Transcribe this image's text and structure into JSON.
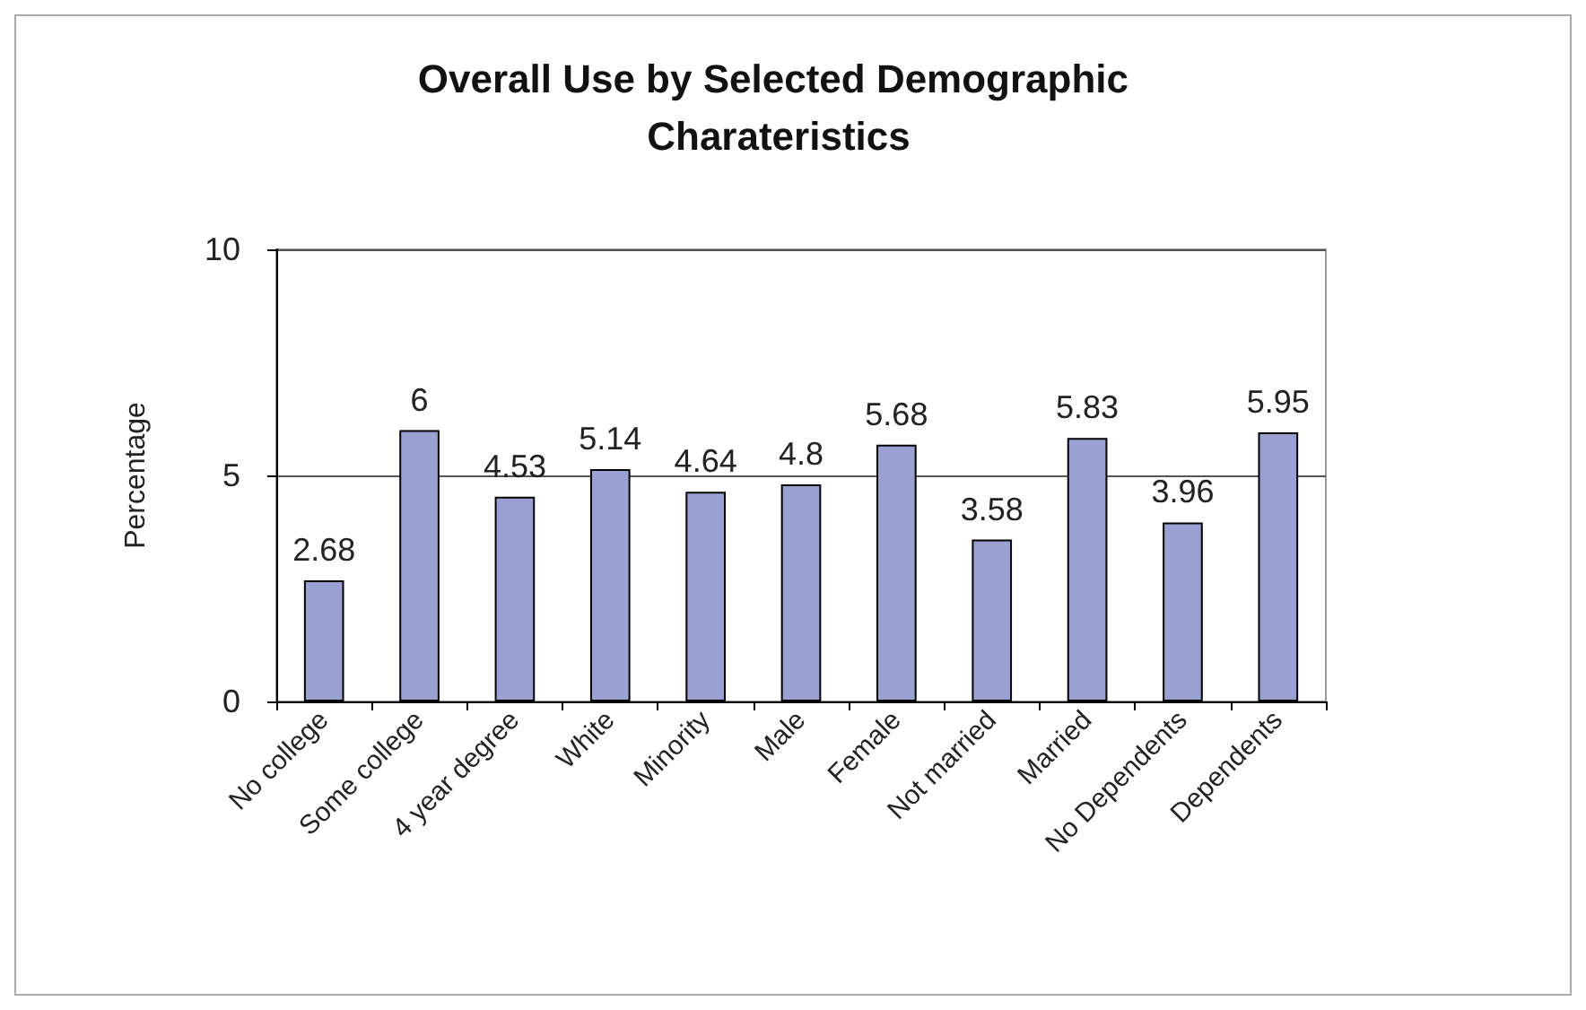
{
  "chart_data": {
    "type": "bar",
    "title": "Overall Use by Selected Demographic Charateristics",
    "ylabel": "Percentage",
    "categories": [
      "No college",
      "Some college",
      "4 year degree",
      "White",
      "Minority",
      "Male",
      "Female",
      "Not married",
      "Married",
      "No Dependents",
      "Dependents"
    ],
    "values": [
      2.68,
      6,
      4.53,
      5.14,
      4.64,
      4.8,
      5.68,
      3.58,
      5.83,
      3.96,
      5.95
    ],
    "color": "#9aa0d2",
    "ylim": [
      0,
      10
    ],
    "yticks": [
      0,
      5,
      10
    ],
    "grid": "y",
    "data_labels": true
  }
}
